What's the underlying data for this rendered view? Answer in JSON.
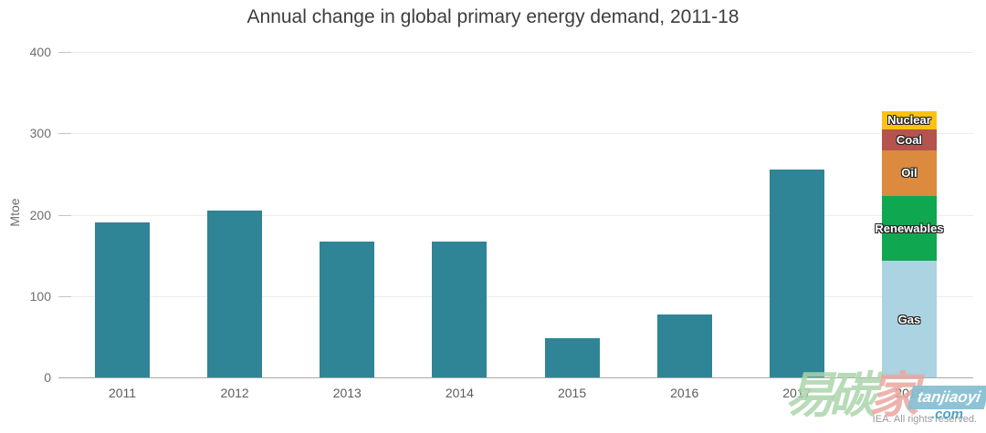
{
  "header": {
    "title": "Annual change in global primary energy demand, 2011-18"
  },
  "footer": {
    "credit": "IEA. All rights reserved."
  },
  "watermark": {
    "char_1": "易",
    "char_2": "碳",
    "char_3": "家",
    "site_name": "tanjiaoyi",
    "site_tld": ".com",
    "green": "#abd5ab",
    "pink": "#e9a89f",
    "block_blue": "#85bed2"
  },
  "chart_data": {
    "type": "bar",
    "title": "Annual change in global primary energy demand, 2011-18",
    "xlabel": "",
    "ylabel": "Mtoe",
    "ylim": [
      0,
      400
    ],
    "yticks": [
      0,
      100,
      200,
      300,
      400
    ],
    "grid": "horizontal",
    "legend_position": "none (segment labels written inside 2018 stacked bar)",
    "bar_color": "#2f8496",
    "categories": [
      "2011",
      "2012",
      "2013",
      "2014",
      "2015",
      "2016",
      "2017",
      "2018"
    ],
    "values_total": [
      190,
      205,
      167,
      167,
      48,
      77,
      255,
      327
    ],
    "stacked_2018_bottom_to_top": [
      {
        "label": "Gas",
        "value": 143,
        "color": "#abd3e1",
        "text_visible": true
      },
      {
        "label": "Renewables",
        "value": 80,
        "color": "#10a751",
        "text_visible": true
      },
      {
        "label": "Oil",
        "value": 56,
        "color": "#dc8a3d",
        "text_visible": true
      },
      {
        "label": "Coal",
        "value": 26,
        "color": "#b5534f",
        "text_visible": true
      },
      {
        "label": "Nuclear",
        "value": 22,
        "color": "#fcc211",
        "text_visible": true
      }
    ]
  }
}
